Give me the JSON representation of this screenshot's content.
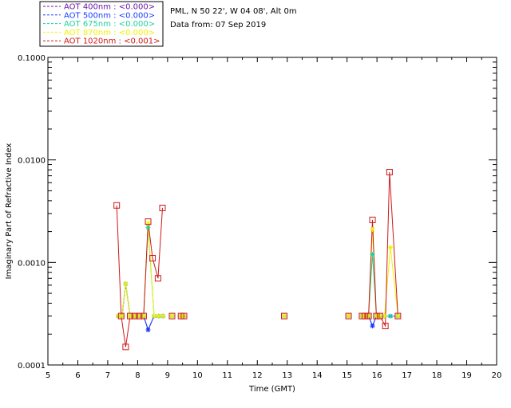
{
  "header": {
    "location": "PML, N 50 22', W 04 08', Alt 0m",
    "date_line": "Data from: 07 Sep 2019"
  },
  "legend": [
    {
      "label": "AOT  400nm : <0.000>",
      "color": "#6a1aa8"
    },
    {
      "label": "AOT  500nm : <0.000>",
      "color": "#1a3cff"
    },
    {
      "label": "AOT  675nm : <0.000>",
      "color": "#1ed0a0"
    },
    {
      "label": "AOT  870nm : <0.000>",
      "color": "#f2f200"
    },
    {
      "label": "AOT 1020nm : <0.001>",
      "color": "#d01818"
    }
  ],
  "chart_data": {
    "type": "line",
    "xlabel": "Time (GMT)",
    "ylabel": "Imaginary Part of Refractive Index",
    "xlim": [
      5,
      20
    ],
    "ylim": [
      0.0001,
      0.1
    ],
    "y_scale": "log",
    "x_ticks": [
      "5",
      "6",
      "7",
      "8",
      "9",
      "10",
      "11",
      "12",
      "13",
      "14",
      "15",
      "16",
      "17",
      "18",
      "19",
      "20"
    ],
    "y_ticks": [
      {
        "value": 0.1,
        "label": "0.1000"
      },
      {
        "value": 0.01,
        "label": "0.0100"
      },
      {
        "value": 0.001,
        "label": "0.0010"
      },
      {
        "value": 0.0001,
        "label": "0.0001"
      }
    ],
    "grid": false,
    "series": [
      {
        "name": "AOT  400nm : <0.000>",
        "color": "#6a1aa8",
        "segments": [
          [
            [
              7.35,
              0.0003
            ],
            [
              7.48,
              0.0003
            ],
            [
              7.6,
              0.00062
            ],
            [
              7.75,
              0.0003
            ],
            [
              7.9,
              0.0003
            ],
            [
              8.05,
              0.0003
            ],
            [
              8.2,
              0.0003
            ],
            [
              8.35,
              0.00022
            ],
            [
              8.55,
              0.0003
            ],
            [
              8.7,
              0.0003
            ],
            [
              8.85,
              0.0003
            ]
          ],
          [
            [
              9.15,
              0.0003
            ]
          ],
          [
            [
              9.45,
              0.0003
            ],
            [
              9.55,
              0.0003
            ]
          ],
          [
            [
              12.9,
              0.0003
            ]
          ],
          [
            [
              15.05,
              0.0003
            ]
          ],
          [
            [
              15.5,
              0.0003
            ],
            [
              15.6,
              0.0003
            ],
            [
              15.72,
              0.0003
            ],
            [
              15.85,
              0.00024
            ],
            [
              15.98,
              0.0003
            ],
            [
              16.1,
              0.0003
            ],
            [
              16.25,
              0.0003
            ],
            [
              16.45,
              0.0003
            ],
            [
              16.7,
              0.0003
            ]
          ]
        ]
      },
      {
        "name": "AOT  500nm : <0.000>",
        "color": "#1a3cff",
        "segments": [
          [
            [
              7.35,
              0.0003
            ],
            [
              7.48,
              0.0003
            ],
            [
              7.6,
              0.00062
            ],
            [
              7.75,
              0.0003
            ],
            [
              7.9,
              0.0003
            ],
            [
              8.05,
              0.0003
            ],
            [
              8.2,
              0.0003
            ],
            [
              8.35,
              0.00022
            ],
            [
              8.55,
              0.0003
            ],
            [
              8.7,
              0.0003
            ],
            [
              8.85,
              0.0003
            ]
          ],
          [
            [
              9.15,
              0.0003
            ]
          ],
          [
            [
              9.45,
              0.0003
            ],
            [
              9.55,
              0.0003
            ]
          ],
          [
            [
              12.9,
              0.0003
            ]
          ],
          [
            [
              15.05,
              0.0003
            ]
          ],
          [
            [
              15.5,
              0.0003
            ],
            [
              15.6,
              0.0003
            ],
            [
              15.72,
              0.0003
            ],
            [
              15.85,
              0.00024
            ],
            [
              15.98,
              0.0003
            ],
            [
              16.1,
              0.0003
            ],
            [
              16.25,
              0.0003
            ],
            [
              16.45,
              0.0003
            ],
            [
              16.7,
              0.0003
            ]
          ]
        ]
      },
      {
        "name": "AOT  675nm : <0.000>",
        "color": "#1ed0a0",
        "segments": [
          [
            [
              7.35,
              0.0003
            ],
            [
              7.48,
              0.0003
            ],
            [
              7.6,
              0.00062
            ],
            [
              7.75,
              0.0003
            ],
            [
              7.9,
              0.0003
            ],
            [
              8.05,
              0.0003
            ],
            [
              8.2,
              0.0003
            ],
            [
              8.35,
              0.0022
            ],
            [
              8.55,
              0.0003
            ],
            [
              8.7,
              0.0003
            ],
            [
              8.85,
              0.0003
            ]
          ],
          [
            [
              9.15,
              0.0003
            ]
          ],
          [
            [
              9.45,
              0.0003
            ],
            [
              9.55,
              0.0003
            ]
          ],
          [
            [
              12.9,
              0.0003
            ]
          ],
          [
            [
              15.05,
              0.0003
            ]
          ],
          [
            [
              15.5,
              0.0003
            ],
            [
              15.6,
              0.0003
            ],
            [
              15.72,
              0.0003
            ],
            [
              15.85,
              0.0012
            ],
            [
              15.98,
              0.0003
            ],
            [
              16.1,
              0.0003
            ],
            [
              16.25,
              0.0003
            ],
            [
              16.45,
              0.0003
            ],
            [
              16.7,
              0.0003
            ]
          ]
        ]
      },
      {
        "name": "AOT  870nm : <0.000>",
        "color": "#f2f200",
        "segments": [
          [
            [
              7.35,
              0.0003
            ],
            [
              7.48,
              0.0003
            ],
            [
              7.6,
              0.00062
            ],
            [
              7.75,
              0.0003
            ],
            [
              7.9,
              0.0003
            ],
            [
              8.05,
              0.0003
            ],
            [
              8.2,
              0.0003
            ],
            [
              8.35,
              0.0024
            ],
            [
              8.55,
              0.0003
            ],
            [
              8.7,
              0.0003
            ],
            [
              8.85,
              0.0003
            ]
          ],
          [
            [
              9.15,
              0.0003
            ]
          ],
          [
            [
              9.45,
              0.0003
            ],
            [
              9.55,
              0.0003
            ]
          ],
          [
            [
              12.9,
              0.0003
            ]
          ],
          [
            [
              15.05,
              0.0003
            ]
          ],
          [
            [
              15.5,
              0.0003
            ],
            [
              15.6,
              0.0003
            ],
            [
              15.72,
              0.0003
            ],
            [
              15.85,
              0.0021
            ],
            [
              15.98,
              0.0003
            ],
            [
              16.1,
              0.0003
            ],
            [
              16.25,
              0.0003
            ],
            [
              16.45,
              0.0014
            ],
            [
              16.7,
              0.0003
            ]
          ]
        ]
      },
      {
        "name": "AOT 1020nm : <0.001>",
        "color": "#d01818",
        "segments": [
          [
            [
              7.3,
              0.0036
            ],
            [
              7.45,
              0.0003
            ],
            [
              7.6,
              0.00015
            ],
            [
              7.75,
              0.0003
            ],
            [
              7.9,
              0.0003
            ],
            [
              8.05,
              0.0003
            ],
            [
              8.2,
              0.0003
            ],
            [
              8.35,
              0.0025
            ],
            [
              8.5,
              0.0011
            ],
            [
              8.68,
              0.0007
            ],
            [
              8.83,
              0.0034
            ]
          ],
          [
            [
              9.15,
              0.0003
            ]
          ],
          [
            [
              9.45,
              0.0003
            ],
            [
              9.55,
              0.0003
            ]
          ],
          [
            [
              12.9,
              0.0003
            ]
          ],
          [
            [
              15.05,
              0.0003
            ]
          ],
          [
            [
              15.5,
              0.0003
            ],
            [
              15.6,
              0.0003
            ],
            [
              15.72,
              0.0003
            ],
            [
              15.85,
              0.0026
            ],
            [
              15.98,
              0.0003
            ],
            [
              16.1,
              0.0003
            ],
            [
              16.28,
              0.00024
            ],
            [
              16.42,
              0.0076
            ],
            [
              16.7,
              0.0003
            ]
          ]
        ]
      }
    ]
  }
}
